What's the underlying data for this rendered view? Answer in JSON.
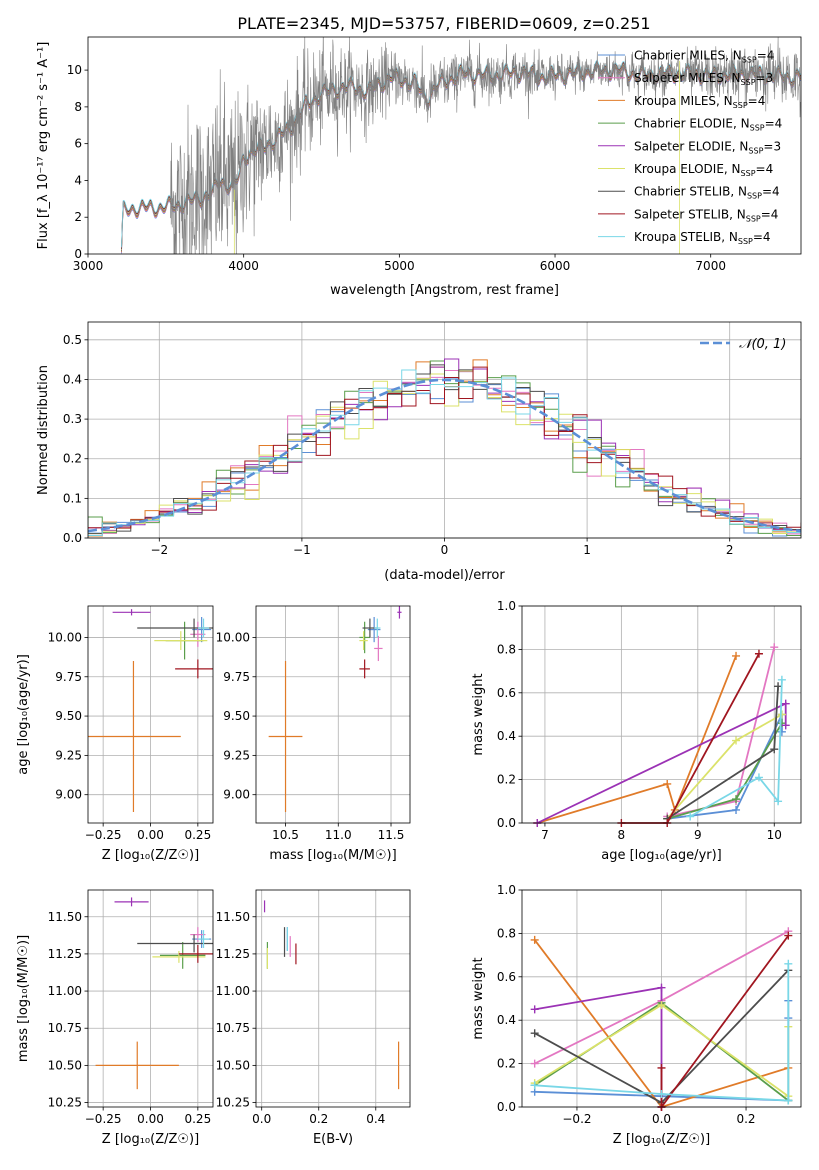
{
  "figure": {
    "title": "PLATE=2345, MJD=53757, FIBERID=0609, z=0.251"
  },
  "colors": {
    "Chabrier MILES": "#5b8fd6",
    "Salpeter MILES": "#e377c2",
    "Kroupa MILES": "#e07b29",
    "Chabrier ELODIE": "#5a9e4b",
    "Salpeter ELODIE": "#9b32b5",
    "Kroupa ELODIE": "#dbe26a",
    "Chabrier STELIB": "#4d4d4d",
    "Salpeter STELIB": "#a01620",
    "Kroupa STELIB": "#79d7e7",
    "data": "#808080",
    "normal": "#5b8fd6"
  },
  "chart_data": [
    {
      "id": "spectrum",
      "type": "line",
      "title": "PLATE=2345, MJD=53757, FIBERID=0609, z=0.251",
      "xlabel": "wavelength [Angstrom, rest frame]",
      "ylabel": "Flux [f_λ 10⁻¹⁷ erg cm⁻² s⁻¹ A⁻¹]",
      "xlim": [
        3000,
        7580
      ],
      "ylim": [
        0,
        11.8
      ],
      "xticks": [
        3000,
        4000,
        5000,
        6000,
        7000
      ],
      "yticks": [
        0,
        2,
        4,
        6,
        8,
        10
      ],
      "grid": false,
      "legend_position": "top-right",
      "legend": [
        {
          "label": "Chabrier MILES, N_SSP=4",
          "base": "Chabrier MILES, N",
          "sub": "SSP",
          "tail": "=4"
        },
        {
          "label": "Salpeter MILES, N_SSP=3",
          "base": "Salpeter MILES, N",
          "sub": "SSP",
          "tail": "=3"
        },
        {
          "label": "Kroupa MILES, N_SSP=4",
          "base": "Kroupa MILES, N",
          "sub": "SSP",
          "tail": "=4"
        },
        {
          "label": "Chabrier ELODIE, N_SSP=4",
          "base": "Chabrier ELODIE, N",
          "sub": "SSP",
          "tail": "=4"
        },
        {
          "label": "Salpeter ELODIE, N_SSP=3",
          "base": "Salpeter ELODIE, N",
          "sub": "SSP",
          "tail": "=3"
        },
        {
          "label": "Kroupa ELODIE, N_SSP=4",
          "base": "Kroupa ELODIE, N",
          "sub": "SSP",
          "tail": "=4"
        },
        {
          "label": "Chabrier STELIB, N_SSP=4",
          "base": "Chabrier STELIB, N",
          "sub": "SSP",
          "tail": "=4"
        },
        {
          "label": "Salpeter STELIB, N_SSP=4",
          "base": "Salpeter STELIB, N",
          "sub": "SSP",
          "tail": "=4"
        },
        {
          "label": "Kroupa STELIB, N_SSP=4",
          "base": "Kroupa STELIB, N",
          "sub": "SSP",
          "tail": "=4"
        }
      ],
      "continuum": [
        [
          3215,
          0
        ],
        [
          3225,
          2.3
        ],
        [
          3300,
          2.5
        ],
        [
          3400,
          2.5
        ],
        [
          3500,
          2.55
        ],
        [
          3600,
          2.7
        ],
        [
          3700,
          3.0
        ],
        [
          3800,
          3.3
        ],
        [
          3850,
          4.0
        ],
        [
          3930,
          3.6
        ],
        [
          3970,
          4.2
        ],
        [
          4000,
          5.3
        ],
        [
          4100,
          5.7
        ],
        [
          4200,
          6.2
        ],
        [
          4300,
          6.9
        ],
        [
          4400,
          8.1
        ],
        [
          4500,
          8.7
        ],
        [
          4600,
          9.0
        ],
        [
          4700,
          9.1
        ],
        [
          4800,
          8.8
        ],
        [
          4860,
          9.2
        ],
        [
          4950,
          9.6
        ],
        [
          5000,
          9.5
        ],
        [
          5100,
          9.3
        ],
        [
          5175,
          8.4
        ],
        [
          5250,
          9.2
        ],
        [
          5400,
          9.8
        ],
        [
          5600,
          9.7
        ],
        [
          5800,
          9.9
        ],
        [
          5890,
          9.6
        ],
        [
          6000,
          9.7
        ],
        [
          6200,
          9.9
        ],
        [
          6400,
          10.0
        ],
        [
          6560,
          9.7
        ],
        [
          6700,
          9.8
        ],
        [
          6800,
          9.8
        ],
        [
          6900,
          9.8
        ],
        [
          7000,
          9.7
        ],
        [
          7200,
          9.8
        ],
        [
          7400,
          9.7
        ],
        [
          7580,
          9.6
        ]
      ],
      "data_range": [
        3530,
        7580
      ],
      "noise_profile": [
        [
          3530,
          2.5
        ],
        [
          3900,
          2.5
        ],
        [
          4200,
          1.5
        ],
        [
          4600,
          1.2
        ],
        [
          5000,
          0.8
        ],
        [
          6000,
          0.5
        ],
        [
          6800,
          0.5
        ],
        [
          7580,
          0.9
        ]
      ]
    },
    {
      "id": "residuals",
      "type": "histogram",
      "xlabel": "(data-model)/error",
      "ylabel": "Normed distribution",
      "xlim": [
        -2.5,
        2.5
      ],
      "ylim": [
        0,
        0.545
      ],
      "xticks": [
        -2,
        -1,
        0,
        1,
        2
      ],
      "yticks": [
        0.0,
        0.1,
        0.2,
        0.3,
        0.4,
        0.5
      ],
      "grid": true,
      "bin_width": 0.1,
      "legend_position": "top-right",
      "legend": [
        {
          "label": "𝒩(0, 1)"
        }
      ]
    },
    {
      "id": "age-vs-Z",
      "type": "errorbar",
      "xlabel": "Z [log₁₀(Z/Z☉)]",
      "ylabel": "age [log₁₀(age/yr)]",
      "xlim": [
        -0.33,
        0.33
      ],
      "ylim": [
        8.82,
        10.2
      ],
      "xticks": [
        -0.25,
        0.0,
        0.25
      ],
      "yticks": [
        9.0,
        9.25,
        9.5,
        9.75,
        10.0
      ],
      "grid": true,
      "points": [
        {
          "model": "Chabrier MILES",
          "x": 0.27,
          "xerr": 0.05,
          "y": 10.05,
          "yerr": 0.08
        },
        {
          "model": "Salpeter MILES",
          "x": 0.25,
          "xerr": 0.04,
          "y": 10.02,
          "yerr": 0.08
        },
        {
          "model": "Kroupa MILES",
          "x": -0.09,
          "xerr": 0.25,
          "y": 9.37,
          "yerr": 0.48
        },
        {
          "model": "Chabrier ELODIE",
          "x": 0.18,
          "xerr": 0.1,
          "y": 9.98,
          "yerr": 0.12
        },
        {
          "model": "Salpeter ELODIE",
          "x": -0.1,
          "xerr": 0.1,
          "y": 10.16,
          "yerr": 0.02
        },
        {
          "model": "Kroupa ELODIE",
          "x": 0.16,
          "xerr": 0.14,
          "y": 9.98,
          "yerr": 0.06
        },
        {
          "model": "Chabrier STELIB",
          "x": 0.23,
          "xerr": 0.3,
          "y": 10.06,
          "yerr": 0.06
        },
        {
          "model": "Salpeter STELIB",
          "x": 0.25,
          "xerr": 0.12,
          "y": 9.8,
          "yerr": 0.06
        },
        {
          "model": "Kroupa STELIB",
          "x": 0.28,
          "xerr": 0.03,
          "y": 10.06,
          "yerr": 0.06
        }
      ]
    },
    {
      "id": "age-vs-mass",
      "type": "errorbar",
      "xlabel": "mass [log₁₀(M/M☉)]",
      "ylabel": "",
      "xlim": [
        10.22,
        11.68
      ],
      "ylim": [
        8.82,
        10.2
      ],
      "xticks": [
        10.5,
        11.0,
        11.5
      ],
      "yticks": [
        9.0,
        9.25,
        9.5,
        9.75,
        10.0
      ],
      "grid": true,
      "points": [
        {
          "model": "Chabrier MILES",
          "x": 11.34,
          "xerr": 0.06,
          "y": 10.05,
          "yerr": 0.08
        },
        {
          "model": "Salpeter MILES",
          "x": 11.38,
          "xerr": 0.04,
          "y": 9.93,
          "yerr": 0.08
        },
        {
          "model": "Kroupa MILES",
          "x": 10.5,
          "xerr": 0.16,
          "y": 9.37,
          "yerr": 0.48
        },
        {
          "model": "Chabrier ELODIE",
          "x": 11.25,
          "xerr": 0.05,
          "y": 10.0,
          "yerr": 0.1
        },
        {
          "model": "Salpeter ELODIE",
          "x": 11.58,
          "xerr": 0.02,
          "y": 10.16,
          "yerr": 0.04
        },
        {
          "model": "Kroupa ELODIE",
          "x": 11.24,
          "xerr": 0.04,
          "y": 9.98,
          "yerr": 0.06
        },
        {
          "model": "Chabrier STELIB",
          "x": 11.3,
          "xerr": 0.07,
          "y": 10.06,
          "yerr": 0.06
        },
        {
          "model": "Salpeter STELIB",
          "x": 11.25,
          "xerr": 0.05,
          "y": 9.8,
          "yerr": 0.06
        },
        {
          "model": "Kroupa STELIB",
          "x": 11.37,
          "xerr": 0.03,
          "y": 10.06,
          "yerr": 0.06
        }
      ]
    },
    {
      "id": "weight-vs-age",
      "type": "line",
      "xlabel": "age [log₁₀(age/yr)]",
      "ylabel": "mass weight",
      "xlim": [
        6.7,
        10.35
      ],
      "ylim": [
        0,
        1.0
      ],
      "xticks": [
        7,
        8,
        9,
        10
      ],
      "yticks": [
        0.0,
        0.2,
        0.4,
        0.6,
        0.8,
        1.0
      ],
      "grid": true,
      "series": [
        {
          "model": "Chabrier MILES",
          "points": [
            [
              8.6,
              0.02
            ],
            [
              9.5,
              0.06
            ],
            [
              10.1,
              0.5
            ],
            [
              10.1,
              0.42
            ]
          ]
        },
        {
          "model": "Salpeter MILES",
          "points": [
            [
              8.6,
              0.03
            ],
            [
              9.5,
              0.1
            ],
            [
              10.0,
              0.81
            ]
          ]
        },
        {
          "model": "Kroupa MILES",
          "points": [
            [
              6.9,
              0.0
            ],
            [
              8.6,
              0.18
            ],
            [
              8.7,
              0.06
            ],
            [
              9.5,
              0.77
            ]
          ]
        },
        {
          "model": "Chabrier ELODIE",
          "points": [
            [
              8.6,
              0.02
            ],
            [
              9.5,
              0.11
            ],
            [
              10.1,
              0.46
            ]
          ]
        },
        {
          "model": "Salpeter ELODIE",
          "points": [
            [
              6.9,
              0.0
            ],
            [
              10.15,
              0.55
            ],
            [
              10.15,
              0.45
            ]
          ]
        },
        {
          "model": "Kroupa ELODIE",
          "points": [
            [
              8.6,
              0.02
            ],
            [
              9.5,
              0.38
            ],
            [
              10.1,
              0.5
            ]
          ]
        },
        {
          "model": "Chabrier STELIB",
          "points": [
            [
              8.6,
              0.02
            ],
            [
              10.0,
              0.34
            ],
            [
              10.05,
              0.63
            ]
          ]
        },
        {
          "model": "Salpeter STELIB",
          "points": [
            [
              8.0,
              0.0
            ],
            [
              8.6,
              0.0
            ],
            [
              9.8,
              0.78
            ]
          ]
        },
        {
          "model": "Kroupa STELIB",
          "points": [
            [
              8.9,
              0.03
            ],
            [
              9.8,
              0.21
            ],
            [
              10.05,
              0.1
            ],
            [
              10.1,
              0.66
            ]
          ]
        }
      ]
    },
    {
      "id": "mass-vs-Z",
      "type": "errorbar",
      "xlabel": "Z [log₁₀(Z/Z☉)]",
      "ylabel": "mass [log₁₀(M/M☉)]",
      "xlim": [
        -0.33,
        0.33
      ],
      "ylim": [
        10.22,
        11.68
      ],
      "xticks": [
        -0.25,
        0.0,
        0.25
      ],
      "yticks": [
        10.25,
        10.5,
        10.75,
        11.0,
        11.25,
        11.5
      ],
      "grid": true,
      "points": [
        {
          "model": "Chabrier MILES",
          "x": 0.27,
          "xerr": 0.05,
          "y": 11.35,
          "yerr": 0.06
        },
        {
          "model": "Salpeter MILES",
          "x": 0.25,
          "xerr": 0.04,
          "y": 11.38,
          "yerr": 0.05
        },
        {
          "model": "Kroupa MILES",
          "x": -0.07,
          "xerr": 0.22,
          "y": 10.5,
          "yerr": 0.16
        },
        {
          "model": "Chabrier ELODIE",
          "x": 0.17,
          "xerr": 0.12,
          "y": 11.24,
          "yerr": 0.09
        },
        {
          "model": "Salpeter ELODIE",
          "x": -0.1,
          "xerr": 0.09,
          "y": 11.6,
          "yerr": 0.03
        },
        {
          "model": "Kroupa ELODIE",
          "x": 0.15,
          "xerr": 0.14,
          "y": 11.23,
          "yerr": 0.04
        },
        {
          "model": "Chabrier STELIB",
          "x": 0.23,
          "xerr": 0.3,
          "y": 11.32,
          "yerr": 0.06
        },
        {
          "model": "Salpeter STELIB",
          "x": 0.25,
          "xerr": 0.1,
          "y": 11.25,
          "yerr": 0.06
        },
        {
          "model": "Kroupa STELIB",
          "x": 0.28,
          "xerr": 0.03,
          "y": 11.35,
          "yerr": 0.06
        }
      ]
    },
    {
      "id": "mass-vs-EBV",
      "type": "errorbar",
      "xlabel": "E(B-V)",
      "ylabel": "",
      "xlim": [
        -0.02,
        0.52
      ],
      "ylim": [
        10.22,
        11.68
      ],
      "xticks": [
        0.0,
        0.2,
        0.4
      ],
      "yticks": [
        10.25,
        10.5,
        10.75,
        11.0,
        11.25,
        11.5
      ],
      "grid": true,
      "points": [
        {
          "model": "Chabrier MILES",
          "x": 0.09,
          "xerr": 0.0,
          "y": 11.35,
          "yerr": 0.08
        },
        {
          "model": "Salpeter MILES",
          "x": 0.1,
          "xerr": 0.0,
          "y": 11.3,
          "yerr": 0.07
        },
        {
          "model": "Kroupa MILES",
          "x": 0.48,
          "xerr": 0.0,
          "y": 10.5,
          "yerr": 0.16
        },
        {
          "model": "Chabrier ELODIE",
          "x": 0.02,
          "xerr": 0.0,
          "y": 11.24,
          "yerr": 0.09
        },
        {
          "model": "Salpeter ELODIE",
          "x": 0.01,
          "xerr": 0.0,
          "y": 11.57,
          "yerr": 0.04
        },
        {
          "model": "Kroupa ELODIE",
          "x": 0.02,
          "xerr": 0.0,
          "y": 11.22,
          "yerr": 0.07
        },
        {
          "model": "Chabrier STELIB",
          "x": 0.08,
          "xerr": 0.0,
          "y": 11.33,
          "yerr": 0.1
        },
        {
          "model": "Salpeter STELIB",
          "x": 0.12,
          "xerr": 0.0,
          "y": 11.25,
          "yerr": 0.07
        },
        {
          "model": "Kroupa STELIB",
          "x": 0.09,
          "xerr": 0.0,
          "y": 11.35,
          "yerr": 0.08
        }
      ]
    },
    {
      "id": "weight-vs-Z",
      "type": "line",
      "xlabel": "Z [log₁₀(Z/Z☉)]",
      "ylabel": "mass weight",
      "xlim": [
        -0.33,
        0.33
      ],
      "ylim": [
        0,
        1.0
      ],
      "xticks": [
        -0.2,
        0.0,
        0.2
      ],
      "yticks": [
        0.0,
        0.2,
        0.4,
        0.6,
        0.8,
        1.0
      ],
      "grid": true,
      "series": [
        {
          "model": "Chabrier MILES",
          "points": [
            [
              -0.3,
              0.07
            ],
            [
              0.0,
              0.05
            ],
            [
              0.3,
              0.03
            ],
            [
              0.3,
              0.41
            ],
            [
              0.3,
              0.49
            ]
          ]
        },
        {
          "model": "Salpeter MILES",
          "points": [
            [
              -0.3,
              0.2
            ],
            [
              0.0,
              0.49
            ],
            [
              0.3,
              0.81
            ]
          ]
        },
        {
          "model": "Kroupa MILES",
          "points": [
            [
              -0.3,
              0.77
            ],
            [
              0.0,
              0.0
            ],
            [
              0.3,
              0.18
            ]
          ]
        },
        {
          "model": "Chabrier ELODIE",
          "points": [
            [
              -0.3,
              0.1
            ],
            [
              0.0,
              0.48
            ],
            [
              0.3,
              0.03
            ]
          ]
        },
        {
          "model": "Salpeter ELODIE",
          "points": [
            [
              -0.3,
              0.45
            ],
            [
              0.0,
              0.55
            ],
            [
              0.0,
              0.0
            ]
          ]
        },
        {
          "model": "Kroupa ELODIE",
          "points": [
            [
              -0.3,
              0.11
            ],
            [
              0.0,
              0.47
            ],
            [
              0.3,
              0.05
            ],
            [
              0.3,
              0.37
            ]
          ]
        },
        {
          "model": "Chabrier STELIB",
          "points": [
            [
              -0.3,
              0.34
            ],
            [
              0.0,
              0.02
            ],
            [
              0.3,
              0.63
            ]
          ]
        },
        {
          "model": "Salpeter STELIB",
          "points": [
            [
              0.0,
              0.18
            ],
            [
              0.0,
              0.0
            ],
            [
              0.3,
              0.79
            ]
          ]
        },
        {
          "model": "Kroupa STELIB",
          "points": [
            [
              -0.3,
              0.1
            ],
            [
              0.0,
              0.06
            ],
            [
              0.3,
              0.03
            ],
            [
              0.3,
              0.66
            ]
          ]
        }
      ]
    }
  ]
}
